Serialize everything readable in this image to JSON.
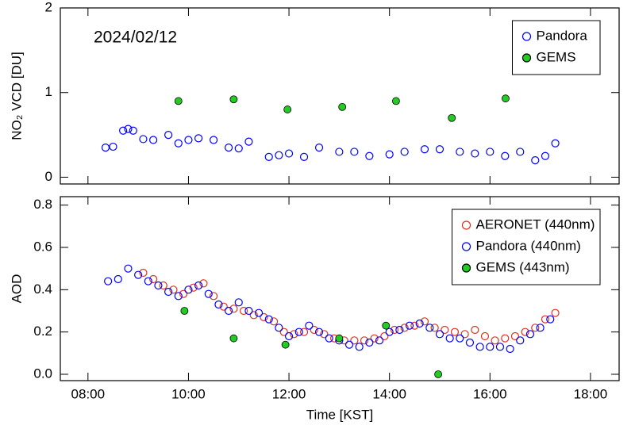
{
  "chart_data": [
    {
      "type": "scatter",
      "ylabel": "NO₂ VCD [DU]",
      "annotation": "2024/02/12",
      "ylim": [
        -0.08,
        2
      ],
      "yticks": [
        0,
        1,
        2
      ],
      "legend": "upper right",
      "series": [
        {
          "name": "Pandora",
          "color": "#0000ff",
          "marker": "open",
          "x": [
            8.35,
            8.5,
            8.7,
            8.8,
            8.9,
            9.1,
            9.3,
            9.6,
            9.8,
            10.0,
            10.2,
            10.5,
            10.8,
            11.0,
            11.2,
            11.6,
            11.8,
            12.0,
            12.3,
            12.6,
            13.0,
            13.3,
            13.6,
            14.0,
            14.3,
            14.7,
            15.0,
            15.4,
            15.7,
            16.0,
            16.3,
            16.6,
            16.9,
            17.1,
            17.3
          ],
          "values": [
            0.35,
            0.36,
            0.55,
            0.57,
            0.55,
            0.45,
            0.44,
            0.5,
            0.4,
            0.44,
            0.46,
            0.44,
            0.35,
            0.34,
            0.42,
            0.24,
            0.26,
            0.28,
            0.24,
            0.35,
            0.3,
            0.3,
            0.25,
            0.27,
            0.3,
            0.33,
            0.33,
            0.3,
            0.28,
            0.3,
            0.25,
            0.3,
            0.2,
            0.25,
            0.4
          ]
        },
        {
          "name": "GEMS",
          "color": "#22cc22",
          "marker": "filled",
          "x": [
            9.8,
            10.9,
            11.97,
            13.06,
            14.13,
            15.24,
            16.31
          ],
          "values": [
            0.9,
            0.92,
            0.8,
            0.83,
            0.9,
            0.7,
            0.93
          ]
        }
      ]
    },
    {
      "type": "scatter",
      "ylabel": "AOD",
      "xlabel": "Time [KST]",
      "ylim": [
        -0.03,
        0.84
      ],
      "yticks": [
        {
          "value": 0,
          "label": "0.0"
        },
        0.2,
        0.4,
        0.6,
        0.8
      ],
      "xlim": [
        7.45,
        18.57
      ],
      "xticks": [
        {
          "value": 8,
          "label": "08:00"
        },
        {
          "value": 10,
          "label": "10:00"
        },
        {
          "value": 12,
          "label": "12:00"
        },
        {
          "value": 14,
          "label": "14:00"
        },
        {
          "value": 16,
          "label": "16:00"
        },
        {
          "value": 18,
          "label": "18:00"
        }
      ],
      "legend": "upper right",
      "series": [
        {
          "name": "AERONET (440nm)",
          "color": "#e03020",
          "marker": "open",
          "x": [
            9.1,
            9.3,
            9.5,
            9.7,
            9.9,
            10.1,
            10.3,
            10.5,
            10.7,
            10.9,
            11.1,
            11.3,
            11.5,
            11.7,
            11.9,
            12.1,
            12.3,
            12.5,
            12.7,
            12.9,
            13.1,
            13.3,
            13.5,
            13.7,
            13.9,
            14.1,
            14.3,
            14.5,
            14.7,
            14.9,
            15.1,
            15.3,
            15.5,
            15.7,
            15.9,
            16.1,
            16.3,
            16.5,
            16.7,
            16.9,
            17.1,
            17.3
          ],
          "values": [
            0.48,
            0.45,
            0.42,
            0.4,
            0.38,
            0.41,
            0.43,
            0.37,
            0.32,
            0.31,
            0.3,
            0.28,
            0.27,
            0.25,
            0.2,
            0.19,
            0.2,
            0.21,
            0.19,
            0.17,
            0.16,
            0.16,
            0.16,
            0.17,
            0.18,
            0.21,
            0.22,
            0.23,
            0.25,
            0.22,
            0.21,
            0.2,
            0.19,
            0.21,
            0.18,
            0.16,
            0.17,
            0.18,
            0.2,
            0.22,
            0.26,
            0.29
          ]
        },
        {
          "name": "Pandora (440nm)",
          "color": "#0000ff",
          "marker": "open",
          "x": [
            8.4,
            8.6,
            8.8,
            9.0,
            9.2,
            9.4,
            9.6,
            9.8,
            10.0,
            10.2,
            10.4,
            10.6,
            10.8,
            11.0,
            11.2,
            11.4,
            11.6,
            11.8,
            12.0,
            12.2,
            12.4,
            12.6,
            12.8,
            13.0,
            13.2,
            13.4,
            13.6,
            13.8,
            14.0,
            14.2,
            14.4,
            14.6,
            14.8,
            15.0,
            15.2,
            15.4,
            15.6,
            15.8,
            16.0,
            16.2,
            16.4,
            16.6,
            16.8,
            17.0,
            17.2
          ],
          "values": [
            0.44,
            0.45,
            0.5,
            0.47,
            0.44,
            0.42,
            0.39,
            0.37,
            0.4,
            0.42,
            0.38,
            0.33,
            0.3,
            0.34,
            0.3,
            0.29,
            0.26,
            0.22,
            0.18,
            0.2,
            0.23,
            0.2,
            0.17,
            0.16,
            0.14,
            0.13,
            0.15,
            0.16,
            0.2,
            0.21,
            0.23,
            0.24,
            0.22,
            0.19,
            0.17,
            0.17,
            0.15,
            0.13,
            0.13,
            0.13,
            0.12,
            0.16,
            0.19,
            0.22,
            0.26
          ]
        },
        {
          "name": "GEMS (443nm)",
          "color": "#22cc22",
          "marker": "filled",
          "x": [
            9.92,
            10.9,
            11.93,
            13.0,
            13.93,
            14.97
          ],
          "values": [
            0.3,
            0.17,
            0.14,
            0.17,
            0.23,
            0
          ]
        }
      ]
    }
  ]
}
